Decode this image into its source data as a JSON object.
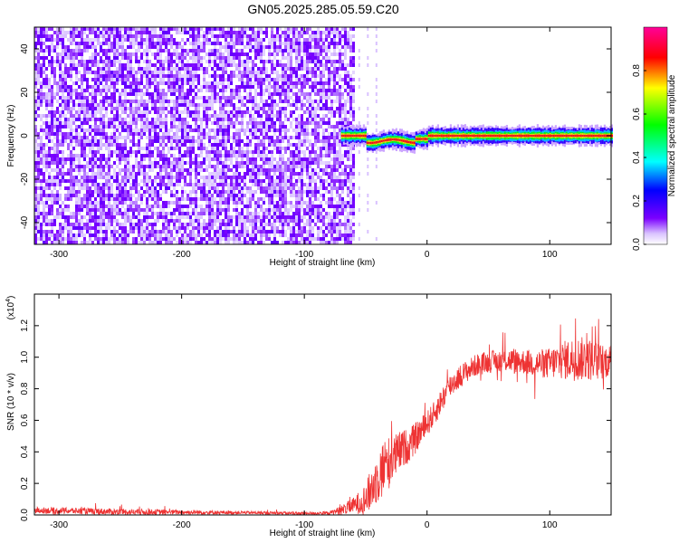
{
  "figure": {
    "title": "GN05.2025.285.05.59.C20"
  },
  "chart_data": [
    {
      "type": "heatmap",
      "name": "spectrogram",
      "xlabel": "Height of straight line (km)",
      "ylabel": "Frequency (Hz)",
      "xlim": [
        -320,
        150
      ],
      "ylim": [
        -50,
        50
      ],
      "xticks": [
        -300,
        -200,
        -100,
        0,
        100
      ],
      "yticks": [
        -40,
        -20,
        0,
        20,
        40
      ],
      "noise_region_x": [
        -320,
        -60
      ],
      "signal_region_x": [
        -70,
        150
      ],
      "signal_center_freq_hz": 0,
      "colorbar": {
        "label": "Normalized spectral amplitude",
        "range": [
          0,
          1
        ],
        "ticks": [
          "0.0",
          "0.2",
          "0.4",
          "0.6",
          "0.8"
        ],
        "tick_values": [
          0.0,
          0.2,
          0.4,
          0.6,
          0.8
        ],
        "colors": [
          "#ffffff",
          "#7b00ff",
          "#0000ff",
          "#00ffff",
          "#00ff00",
          "#ffff00",
          "#ff0000",
          "#ff00aa"
        ]
      }
    },
    {
      "type": "line",
      "name": "snr",
      "xlabel": "Height of straight line (km)",
      "ylabel": "SNR (10 * v/v)",
      "yscale_label": "(x10",
      "yscale_exponent": "4",
      "xlim": [
        -320,
        150
      ],
      "ylim": [
        0,
        1.4
      ],
      "xticks": [
        -300,
        -200,
        -100,
        0,
        100
      ],
      "yticks": [
        "0.0",
        "0.2",
        "0.4",
        "0.6",
        "0.8",
        "1.0",
        "1.2"
      ],
      "ytick_values": [
        0.0,
        0.2,
        0.4,
        0.6,
        0.8,
        1.0,
        1.2
      ],
      "color": "#ee3333",
      "x": [
        -320,
        -250,
        -150,
        -100,
        -80,
        -70,
        -60,
        -50,
        -45,
        -40,
        -35,
        -30,
        -25,
        -20,
        -15,
        -10,
        -5,
        0,
        5,
        10,
        15,
        20,
        30,
        40,
        50,
        60,
        70,
        80,
        90,
        100,
        110,
        120,
        130,
        140,
        150
      ],
      "y": [
        0.03,
        0.02,
        0.015,
        0.01,
        0.012,
        0.03,
        0.06,
        0.1,
        0.17,
        0.24,
        0.3,
        0.34,
        0.38,
        0.42,
        0.44,
        0.48,
        0.53,
        0.58,
        0.63,
        0.7,
        0.77,
        0.83,
        0.9,
        0.95,
        0.97,
        0.98,
        0.98,
        0.97,
        0.96,
        0.96,
        0.98,
        0.99,
        0.99,
        0.97,
        0.98
      ],
      "spread": [
        0.02,
        0.02,
        0.01,
        0.01,
        0.01,
        0.03,
        0.05,
        0.1,
        0.14,
        0.16,
        0.2,
        0.16,
        0.14,
        0.12,
        0.11,
        0.1,
        0.09,
        0.08,
        0.08,
        0.08,
        0.08,
        0.08,
        0.07,
        0.07,
        0.07,
        0.07,
        0.08,
        0.08,
        0.09,
        0.1,
        0.12,
        0.14,
        0.14,
        0.12,
        0.1
      ]
    }
  ]
}
